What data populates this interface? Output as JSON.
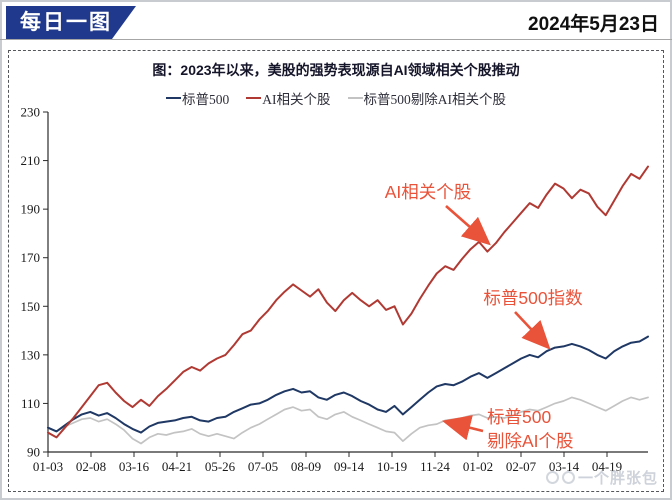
{
  "header": {
    "badge": "每日一图",
    "date": "2024年5月23日"
  },
  "watermark": {
    "text": "一个胖张包"
  },
  "chart_data": {
    "type": "line",
    "title": "图：2023年以来，美股的强势表现源自AI领域相关个股推动",
    "xlabel": "",
    "ylabel": "",
    "ylim": [
      90,
      230
    ],
    "y_ticks": [
      90,
      110,
      130,
      150,
      170,
      190,
      210,
      230
    ],
    "grid": false,
    "legend_position": "top",
    "x_tick_labels": [
      "01-03",
      "02-08",
      "03-16",
      "04-21",
      "05-26",
      "07-05",
      "08-09",
      "09-14",
      "10-19",
      "11-24",
      "01-02",
      "02-07",
      "03-14",
      "04-19"
    ],
    "series": [
      {
        "name": "标普500",
        "color": "#1f3864",
        "values": [
          100,
          98.5,
          101,
          103.5,
          105.5,
          106.5,
          105,
          106,
          104,
          101.5,
          99.5,
          98,
          100.5,
          102,
          102.5,
          103,
          104,
          104.5,
          103,
          102.5,
          104,
          104.5,
          106.5,
          108,
          109.5,
          110,
          111.5,
          113.5,
          115,
          116,
          114.5,
          115,
          112.5,
          111.5,
          113.5,
          114.5,
          113,
          111,
          109.5,
          107.5,
          106.5,
          109,
          105.5,
          108.5,
          111.5,
          114.5,
          117,
          118,
          117.5,
          119,
          121,
          122.5,
          120.5,
          122.5,
          124.5,
          126.5,
          128.5,
          130,
          129,
          131.5,
          133,
          133.5,
          134.5,
          133.5,
          132,
          130,
          128.5,
          131.5,
          133.5,
          135,
          135.5,
          137.5
        ]
      },
      {
        "name": "AI相关个股",
        "color": "#b03a33",
        "values": [
          98,
          96,
          100,
          104,
          108.5,
          113,
          117.5,
          118.5,
          114.5,
          111,
          108.5,
          111.5,
          109,
          113,
          116,
          119.5,
          123,
          125,
          123.5,
          126.5,
          128.5,
          130,
          134,
          138.5,
          140,
          144.5,
          148,
          152.5,
          156,
          159,
          156.5,
          154,
          157,
          151.5,
          148,
          152.5,
          155.5,
          152.5,
          150,
          152.5,
          148.5,
          150,
          142.5,
          147,
          153,
          158.5,
          163.5,
          166.5,
          165,
          169.5,
          173.5,
          176.5,
          172.5,
          176,
          180.5,
          184.5,
          188.5,
          192.5,
          190.5,
          196,
          200.5,
          198.5,
          194.5,
          198,
          196.5,
          191,
          187.5,
          193.5,
          199.5,
          204.5,
          202.5,
          207.5
        ]
      },
      {
        "name": "标普500剔除AI相关个股",
        "color": "#c3c3c3",
        "values": [
          100,
          98.5,
          100.5,
          102,
          103.5,
          104,
          102.5,
          103.5,
          101.5,
          99,
          95.5,
          93.5,
          96,
          97.5,
          97,
          98,
          98.5,
          99.5,
          97.5,
          96.5,
          97.5,
          96.5,
          95.5,
          98,
          100,
          101.5,
          103.5,
          105.5,
          107.5,
          108.5,
          107,
          107.5,
          104.5,
          103.5,
          105.5,
          106.5,
          104.5,
          103,
          101.5,
          100,
          98.5,
          98,
          94.5,
          97.5,
          100,
          101,
          101.5,
          103,
          103.5,
          104,
          105,
          105.5,
          104,
          104.5,
          104,
          105,
          106.5,
          107.5,
          107,
          108.5,
          110,
          111,
          112.5,
          111.5,
          110,
          108.5,
          107,
          109,
          111,
          112.5,
          111.5,
          112.5
        ]
      }
    ],
    "annotations": [
      {
        "text": "AI相关个股",
        "color": "#e8533a"
      },
      {
        "text": "标普500指数",
        "color": "#e8533a"
      },
      {
        "lines": [
          "标普500",
          "剔除AI个股"
        ],
        "color": "#e8533a"
      }
    ]
  }
}
